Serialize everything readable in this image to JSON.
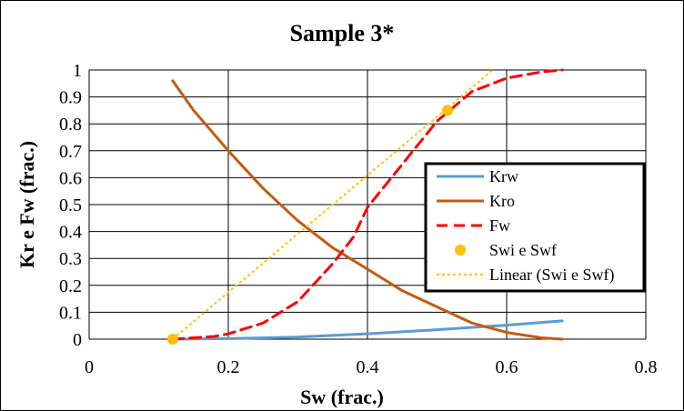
{
  "chart_data": {
    "type": "line",
    "title": "Sample 3*",
    "xlabel": "Sw (frac.)",
    "ylabel": "Kr e Fw (frac.)",
    "xlim": [
      0,
      0.8
    ],
    "ylim": [
      0,
      1
    ],
    "x_ticks": [
      0,
      0.2,
      0.4,
      0.6,
      0.8
    ],
    "x_tick_labels": [
      "0",
      "0.2",
      "0.4",
      "0.6",
      "0.8"
    ],
    "y_ticks": [
      0,
      0.1,
      0.2,
      0.3,
      0.4,
      0.5,
      0.6,
      0.7,
      0.8,
      0.9,
      1
    ],
    "y_tick_labels": [
      "0",
      "0.1",
      "0.2",
      "0.3",
      "0.4",
      "0.5",
      "0.6",
      "0.7",
      "0.8",
      "0.9",
      "1"
    ],
    "grid": "on",
    "legend_position": "right",
    "series": [
      {
        "name": "Krw",
        "style": "solid",
        "color": "#5B9BD5",
        "x": [
          0.12,
          0.2,
          0.3,
          0.4,
          0.5,
          0.6,
          0.68
        ],
        "y": [
          0.0,
          0.002,
          0.008,
          0.02,
          0.035,
          0.052,
          0.068
        ]
      },
      {
        "name": "Kro",
        "style": "solid",
        "color": "#C55A11",
        "x": [
          0.12,
          0.15,
          0.2,
          0.25,
          0.3,
          0.35,
          0.4,
          0.45,
          0.5,
          0.55,
          0.6,
          0.65,
          0.68
        ],
        "y": [
          0.96,
          0.85,
          0.7,
          0.56,
          0.44,
          0.34,
          0.26,
          0.18,
          0.12,
          0.06,
          0.025,
          0.005,
          0.0
        ]
      },
      {
        "name": "Fw",
        "style": "dashed",
        "color": "#FF0000",
        "x": [
          0.12,
          0.15,
          0.18,
          0.2,
          0.25,
          0.3,
          0.35,
          0.38,
          0.4,
          0.45,
          0.5,
          0.55,
          0.6,
          0.65,
          0.68
        ],
        "y": [
          0.0,
          0.005,
          0.01,
          0.02,
          0.06,
          0.14,
          0.28,
          0.38,
          0.49,
          0.65,
          0.81,
          0.92,
          0.97,
          0.993,
          1.0
        ]
      },
      {
        "name": "Swi e Swf",
        "style": "markers",
        "color": "#FFC000",
        "x": [
          0.12,
          0.515
        ],
        "y": [
          0.0,
          0.85
        ]
      },
      {
        "name": "Linear (Swi e Swf)",
        "style": "dotted",
        "color": "#FFC000",
        "x": [
          0.12,
          0.58
        ],
        "y": [
          0.0,
          1.0
        ]
      }
    ]
  }
}
